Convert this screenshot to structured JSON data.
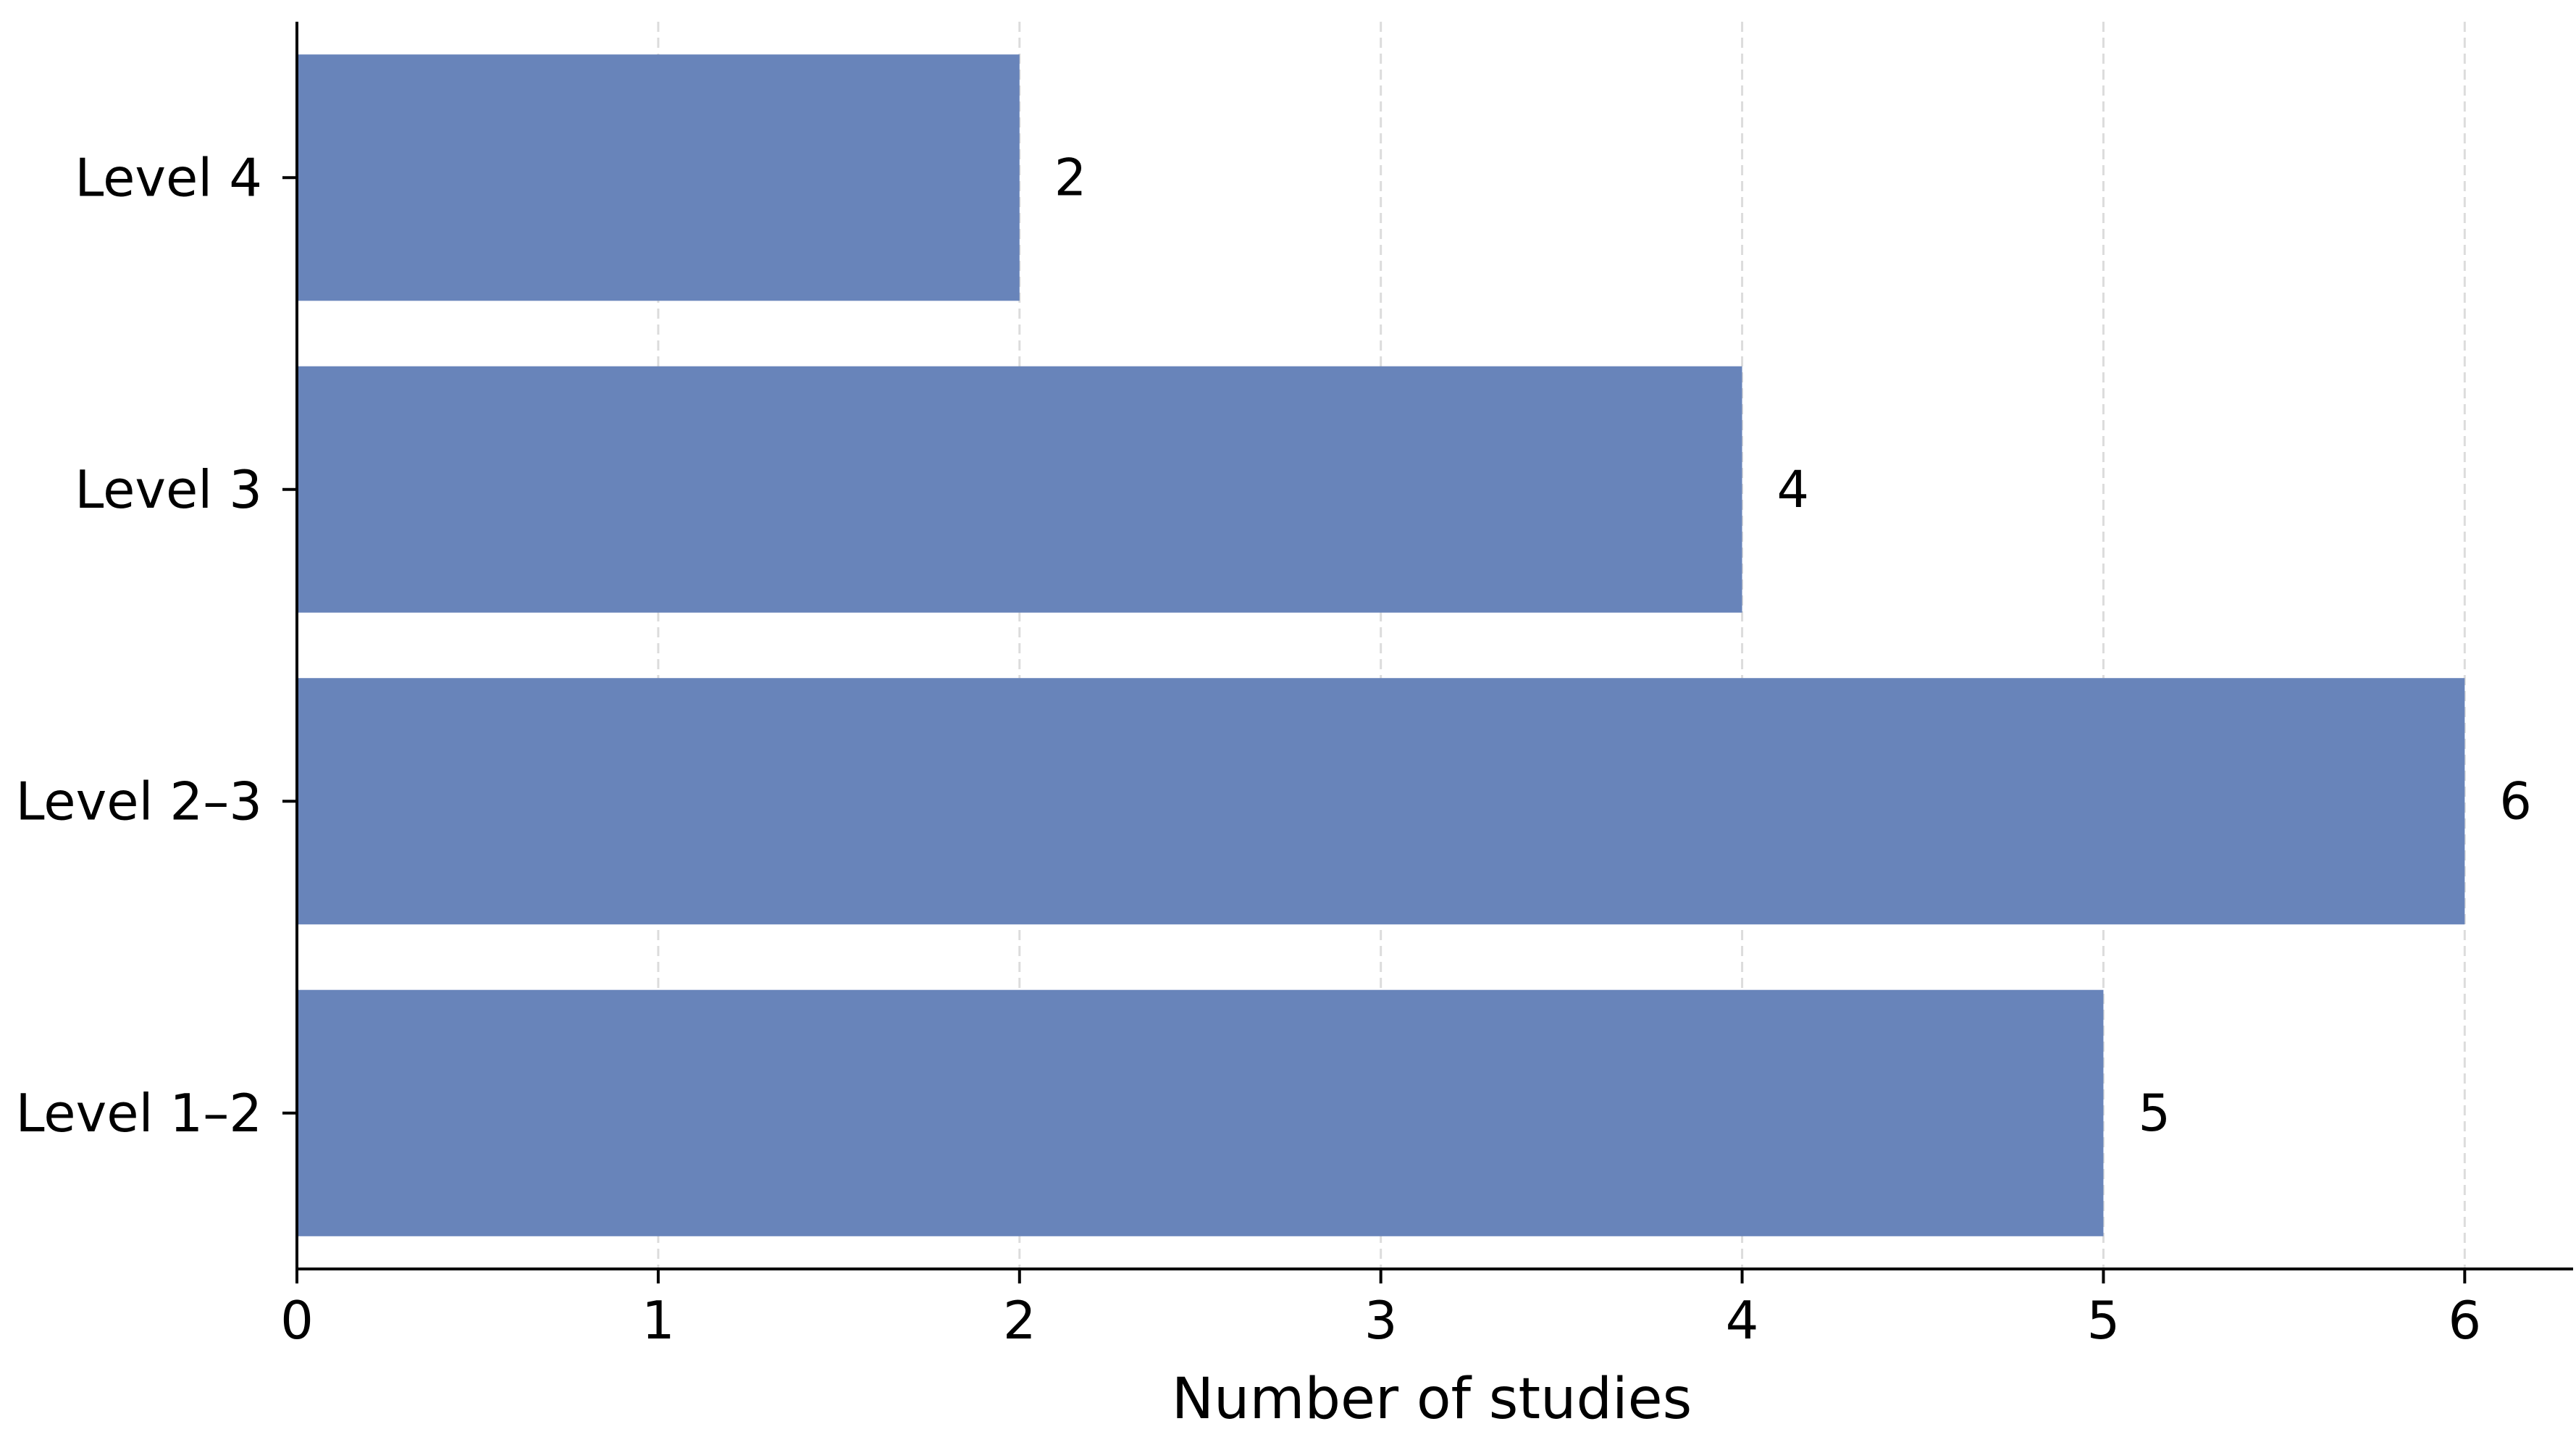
{
  "chart_data": {
    "type": "bar",
    "orientation": "horizontal",
    "categories": [
      "Level 1–2",
      "Level 2–3",
      "Level 3",
      "Level 4"
    ],
    "values": [
      5,
      6,
      4,
      2
    ],
    "value_labels": [
      "5",
      "6",
      "4",
      "2"
    ],
    "title": "",
    "xlabel": "Number of studies",
    "ylabel": "",
    "xlim": [
      0,
      6.3
    ],
    "x_ticks": [
      0,
      1,
      2,
      3,
      4,
      5,
      6
    ],
    "x_tick_labels": [
      "0",
      "1",
      "2",
      "3",
      "4",
      "5",
      "6"
    ],
    "grid": "x-axis dashed",
    "bar_color": "#6884ba",
    "grid_color": "#dcdcdc"
  }
}
